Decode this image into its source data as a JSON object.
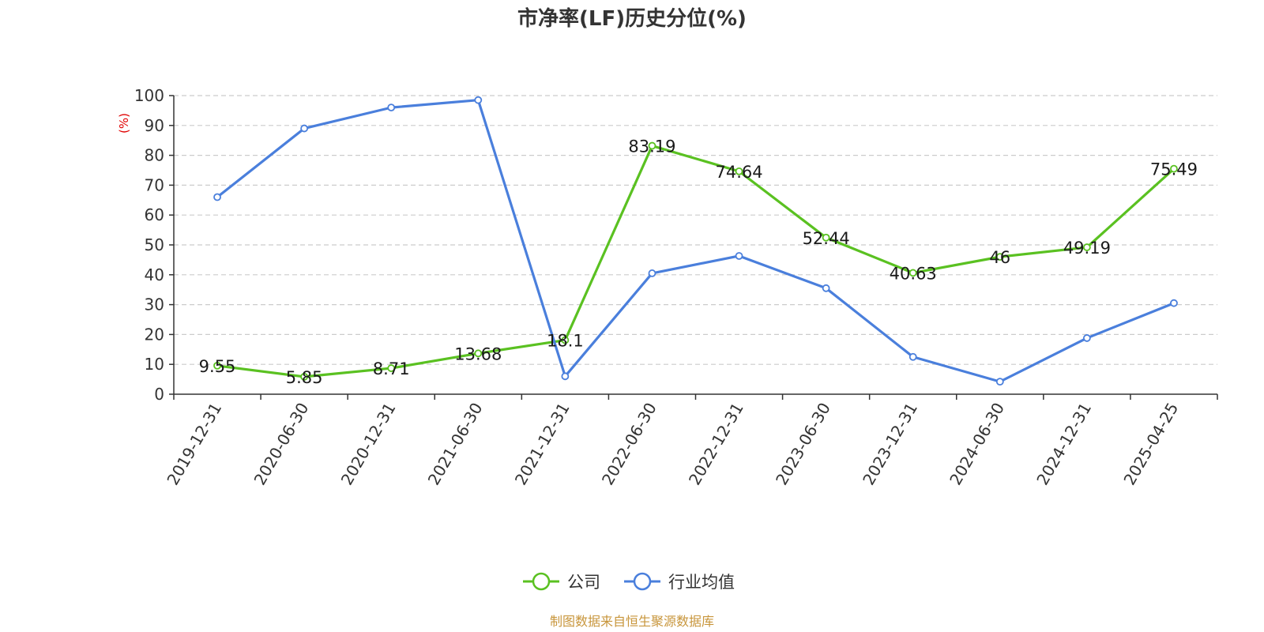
{
  "chart_data": {
    "type": "line",
    "title": "市净率(LF)历史分位(%)",
    "ylabel": "(%)",
    "xlabel": "",
    "ylim": [
      0,
      100
    ],
    "yticks": [
      0,
      10,
      20,
      30,
      40,
      50,
      60,
      70,
      80,
      90,
      100
    ],
    "categories": [
      "2019-12-31",
      "2020-06-30",
      "2020-12-31",
      "2021-06-30",
      "2021-12-31",
      "2022-06-30",
      "2022-12-31",
      "2023-06-30",
      "2023-12-31",
      "2024-06-30",
      "2024-12-31",
      "2025-04-25"
    ],
    "series": [
      {
        "name": "公司",
        "color": "#5ac121",
        "show_labels": true,
        "values": [
          9.55,
          5.85,
          8.71,
          13.68,
          18.1,
          83.19,
          74.64,
          52.44,
          40.63,
          46,
          49.19,
          75.49
        ]
      },
      {
        "name": "行业均值",
        "color": "#4a7fdc",
        "show_labels": false,
        "values": [
          66,
          89,
          96,
          98.5,
          6,
          40.5,
          46.3,
          35.5,
          12.5,
          4.2,
          18.8,
          30.5
        ]
      }
    ],
    "grid": "horizontal-dashed",
    "legend_position": "bottom-center"
  },
  "colors": {
    "unit_label": "#e00000",
    "source": "#c8963c",
    "grid": "#cccccc",
    "axis": "#333333"
  },
  "source_text": "制图数据来自恒生聚源数据库"
}
